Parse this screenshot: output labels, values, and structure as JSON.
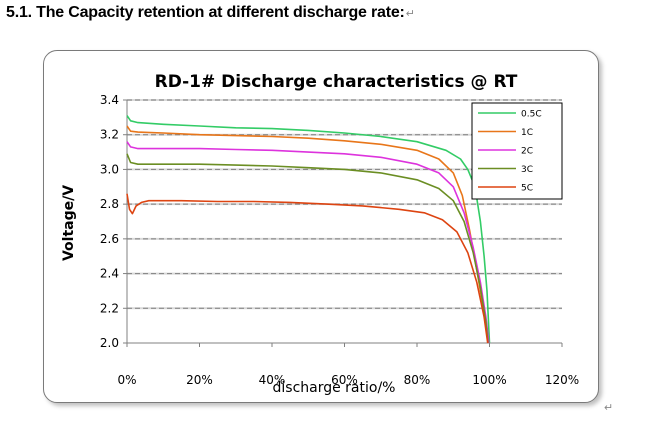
{
  "document": {
    "heading": "5.1. The Capacity retention at different discharge rate:",
    "paragraph_mark": "↵"
  },
  "chart_data": {
    "type": "line",
    "title": "RD-1# Discharge characteristics @ RT",
    "xlabel": "discharge ratio/%",
    "ylabel": "Voltage/V",
    "xlim": [
      0,
      120
    ],
    "ylim": [
      2.0,
      3.4
    ],
    "x_ticks": [
      "0%",
      "20%",
      "40%",
      "60%",
      "80%",
      "100%",
      "120%"
    ],
    "y_ticks": [
      "2.0",
      "2.2",
      "2.4",
      "2.6",
      "2.8",
      "3.0",
      "3.2",
      "3.4"
    ],
    "grid": "horizontal-dashed",
    "legend_position": "top-right",
    "series": [
      {
        "name": "0.5C",
        "color": "#33cc66",
        "points": [
          [
            0,
            3.31
          ],
          [
            1,
            3.28
          ],
          [
            3,
            3.27
          ],
          [
            10,
            3.26
          ],
          [
            20,
            3.25
          ],
          [
            30,
            3.24
          ],
          [
            40,
            3.235
          ],
          [
            50,
            3.225
          ],
          [
            60,
            3.21
          ],
          [
            70,
            3.19
          ],
          [
            80,
            3.16
          ],
          [
            88,
            3.11
          ],
          [
            92,
            3.06
          ],
          [
            94,
            3.0
          ],
          [
            96,
            2.9
          ],
          [
            97.5,
            2.7
          ],
          [
            98.5,
            2.5
          ],
          [
            99.3,
            2.3
          ],
          [
            100,
            2.0
          ]
        ]
      },
      {
        "name": "1C",
        "color": "#e8761a",
        "points": [
          [
            0,
            3.25
          ],
          [
            1,
            3.22
          ],
          [
            3,
            3.215
          ],
          [
            10,
            3.21
          ],
          [
            20,
            3.2
          ],
          [
            30,
            3.195
          ],
          [
            40,
            3.19
          ],
          [
            50,
            3.18
          ],
          [
            60,
            3.165
          ],
          [
            70,
            3.145
          ],
          [
            80,
            3.11
          ],
          [
            86,
            3.06
          ],
          [
            90,
            2.98
          ],
          [
            92.5,
            2.85
          ],
          [
            94.5,
            2.65
          ],
          [
            96.5,
            2.42
          ],
          [
            98.3,
            2.2
          ],
          [
            99.6,
            2.0
          ]
        ]
      },
      {
        "name": "2C",
        "color": "#dd33dd",
        "points": [
          [
            0,
            3.16
          ],
          [
            1,
            3.13
          ],
          [
            3,
            3.12
          ],
          [
            10,
            3.12
          ],
          [
            20,
            3.12
          ],
          [
            30,
            3.115
          ],
          [
            40,
            3.11
          ],
          [
            50,
            3.1
          ],
          [
            60,
            3.09
          ],
          [
            70,
            3.07
          ],
          [
            80,
            3.03
          ],
          [
            86,
            2.98
          ],
          [
            90,
            2.9
          ],
          [
            93,
            2.75
          ],
          [
            95.5,
            2.55
          ],
          [
            97.5,
            2.35
          ],
          [
            99,
            2.15
          ],
          [
            99.8,
            2.0
          ]
        ]
      },
      {
        "name": "3C",
        "color": "#6b8e23",
        "points": [
          [
            0,
            3.09
          ],
          [
            1,
            3.04
          ],
          [
            3,
            3.03
          ],
          [
            10,
            3.03
          ],
          [
            20,
            3.03
          ],
          [
            30,
            3.025
          ],
          [
            40,
            3.02
          ],
          [
            50,
            3.01
          ],
          [
            60,
            3.0
          ],
          [
            70,
            2.98
          ],
          [
            80,
            2.94
          ],
          [
            86,
            2.89
          ],
          [
            90,
            2.82
          ],
          [
            93,
            2.7
          ],
          [
            95.5,
            2.52
          ],
          [
            97.5,
            2.32
          ],
          [
            99,
            2.12
          ],
          [
            99.6,
            2.0
          ]
        ]
      },
      {
        "name": "5C",
        "color": "#dd4411",
        "points": [
          [
            0,
            2.86
          ],
          [
            0.7,
            2.77
          ],
          [
            1.5,
            2.745
          ],
          [
            2.5,
            2.79
          ],
          [
            4,
            2.81
          ],
          [
            6,
            2.82
          ],
          [
            15,
            2.82
          ],
          [
            25,
            2.815
          ],
          [
            35,
            2.815
          ],
          [
            45,
            2.81
          ],
          [
            55,
            2.8
          ],
          [
            65,
            2.79
          ],
          [
            75,
            2.77
          ],
          [
            82,
            2.75
          ],
          [
            87,
            2.71
          ],
          [
            91,
            2.64
          ],
          [
            94,
            2.52
          ],
          [
            96.5,
            2.35
          ],
          [
            98.5,
            2.15
          ],
          [
            99.5,
            2.0
          ]
        ]
      }
    ]
  }
}
